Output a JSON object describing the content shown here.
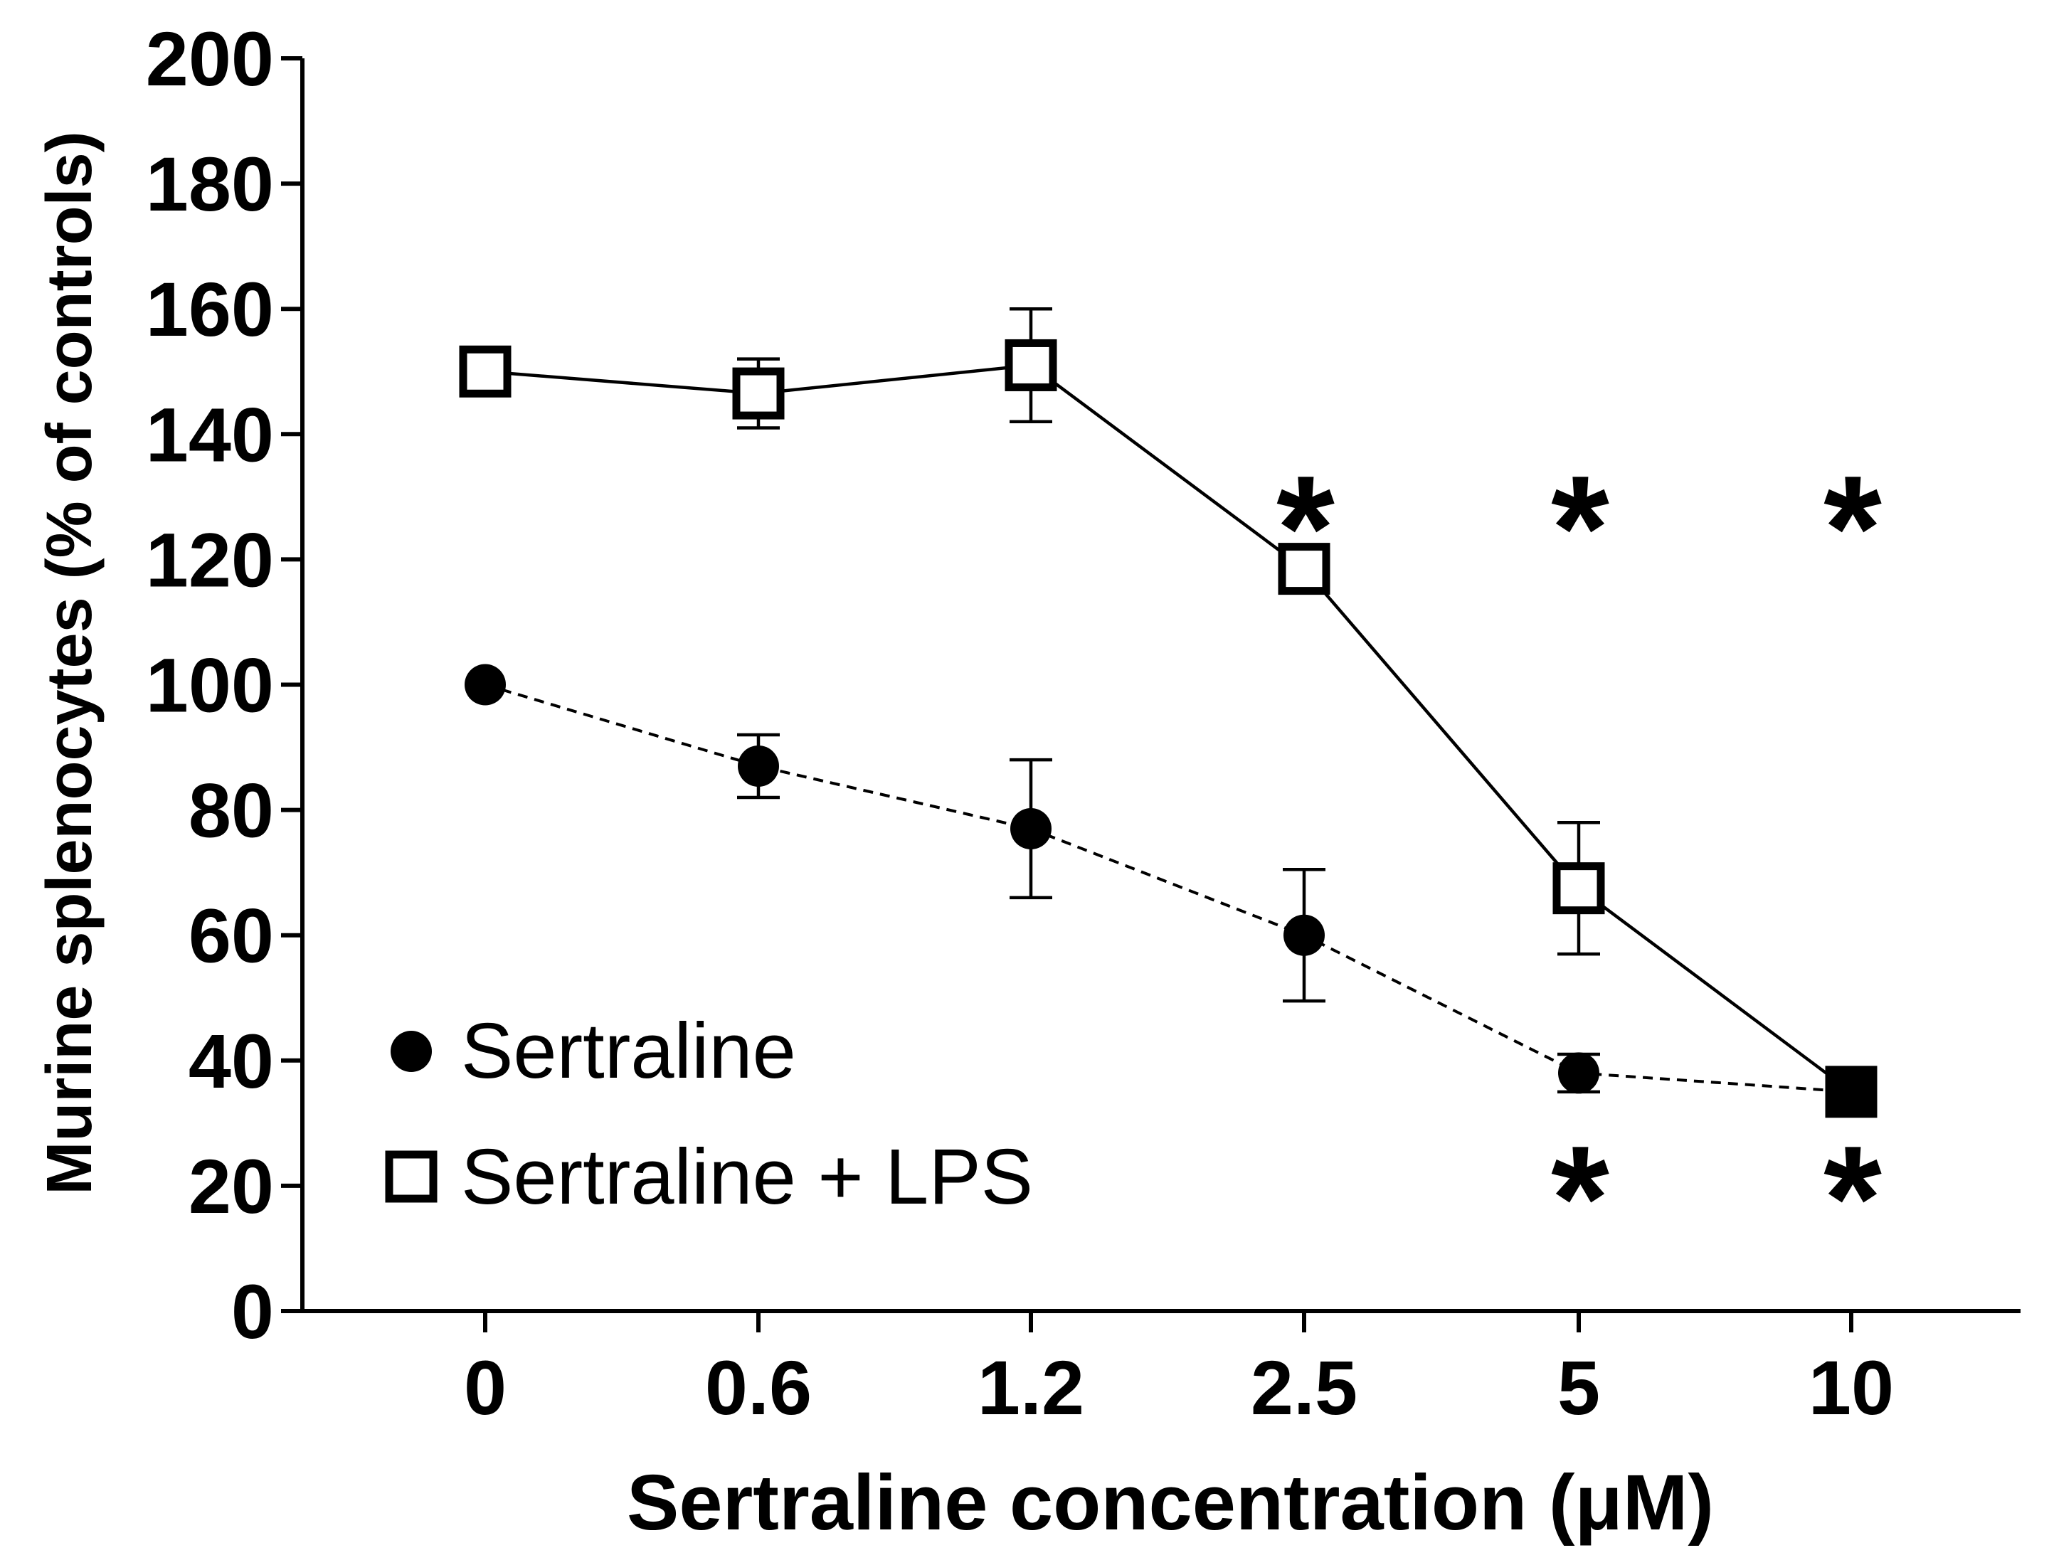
{
  "chart_data": {
    "type": "line",
    "title": "",
    "xlabel": "Sertraline concentration (μM)",
    "ylabel": "Murine splenocytes (% of controls)",
    "categories": [
      "0",
      "0.6",
      "1.2",
      "2.5",
      "5",
      "10"
    ],
    "ylim": [
      0,
      200
    ],
    "yticks": [
      0,
      20,
      40,
      60,
      80,
      100,
      120,
      140,
      160,
      180,
      200
    ],
    "grid": false,
    "legend_position": "bottom-left",
    "series": [
      {
        "name": "Sertraline",
        "marker": "filled-circle",
        "line_style": "dashed",
        "values": [
          100,
          87,
          77,
          60,
          38,
          35
        ],
        "errors": [
          0,
          5,
          11,
          10.5,
          3,
          0
        ]
      },
      {
        "name": "Sertraline + LPS",
        "marker": "open-square",
        "line_style": "solid",
        "values": [
          150,
          146.5,
          151,
          118.5,
          67.5,
          35
        ],
        "errors": [
          0,
          5.5,
          9,
          0,
          10.5,
          0
        ]
      }
    ],
    "annotations": [
      {
        "text": "*",
        "category": "2.5",
        "y": 127
      },
      {
        "text": "*",
        "category": "5",
        "y": 127
      },
      {
        "text": "*",
        "category": "10",
        "y": 127
      },
      {
        "text": "*",
        "category": "5",
        "y": 20
      },
      {
        "text": "*",
        "category": "10",
        "y": 20
      }
    ]
  }
}
